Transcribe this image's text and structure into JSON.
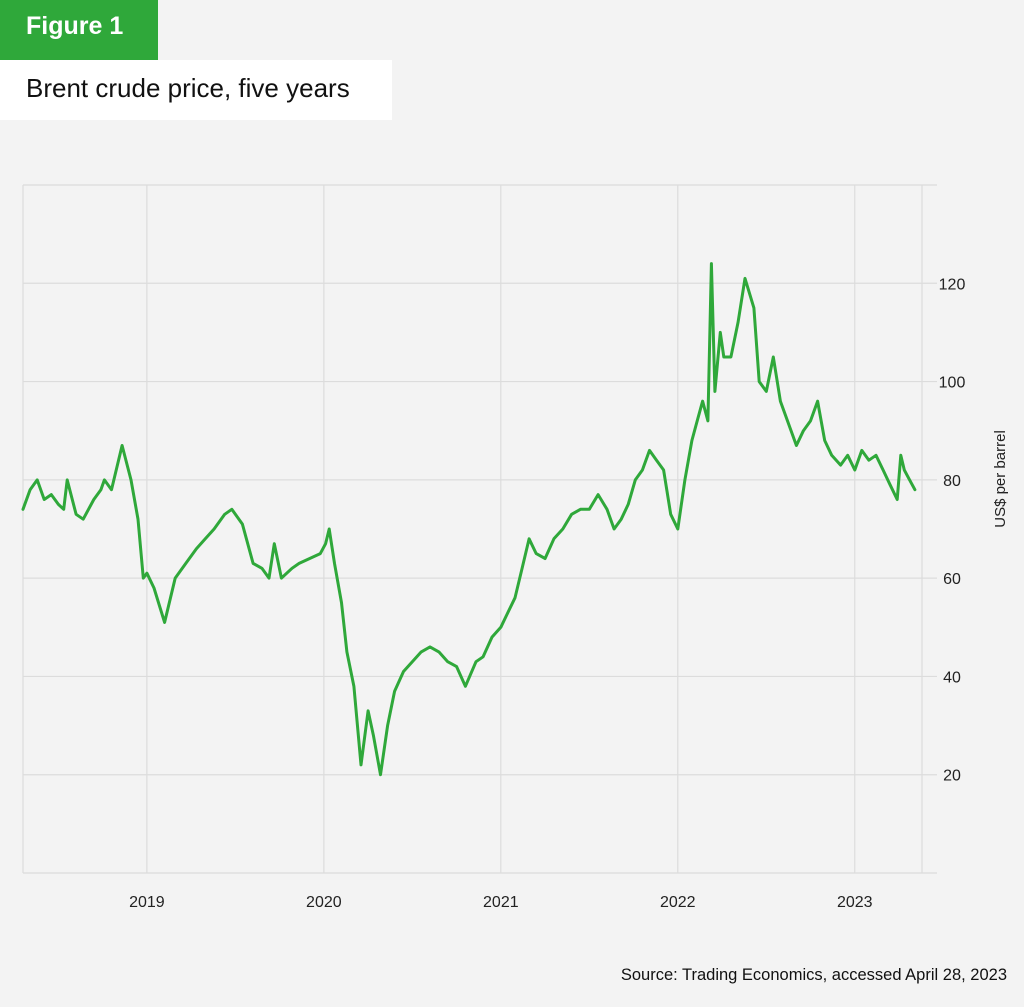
{
  "figure_label": "Figure 1",
  "title": "Brent crude price, five years",
  "source": "Source: Trading Economics, accessed April 28, 2023",
  "colors": {
    "line": "#2fa83a",
    "badge": "#2fa83a",
    "grid": "#dcdcdc"
  },
  "chart_data": {
    "type": "line",
    "title": "Brent crude price, five years",
    "xlabel": "",
    "ylabel": "US$ per barrel",
    "xlim": [
      2018.3,
      2023.38
    ],
    "ylim": [
      0,
      140
    ],
    "yticks": [
      20,
      40,
      60,
      80,
      100,
      120
    ],
    "xticks": [
      {
        "label": "2019",
        "value": 2019.0
      },
      {
        "label": "2020",
        "value": 2020.0
      },
      {
        "label": "2021",
        "value": 2021.0
      },
      {
        "label": "2022",
        "value": 2022.0
      },
      {
        "label": "2023",
        "value": 2023.0
      }
    ],
    "grid": true,
    "y_axis_side": "right",
    "series": [
      {
        "name": "",
        "x": [
          2018.3,
          2018.34,
          2018.38,
          2018.42,
          2018.46,
          2018.5,
          2018.53,
          2018.55,
          2018.6,
          2018.64,
          2018.7,
          2018.74,
          2018.76,
          2018.8,
          2018.86,
          2018.91,
          2018.95,
          2018.98,
          2019.0,
          2019.04,
          2019.1,
          2019.16,
          2019.22,
          2019.28,
          2019.33,
          2019.38,
          2019.44,
          2019.48,
          2019.54,
          2019.6,
          2019.65,
          2019.69,
          2019.72,
          2019.76,
          2019.82,
          2019.86,
          2019.92,
          2019.98,
          2020.01,
          2020.03,
          2020.06,
          2020.1,
          2020.13,
          2020.17,
          2020.21,
          2020.25,
          2020.28,
          2020.32,
          2020.36,
          2020.4,
          2020.45,
          2020.5,
          2020.55,
          2020.6,
          2020.65,
          2020.7,
          2020.75,
          2020.8,
          2020.86,
          2020.9,
          2020.95,
          2021.0,
          2021.04,
          2021.08,
          2021.12,
          2021.16,
          2021.2,
          2021.25,
          2021.3,
          2021.35,
          2021.4,
          2021.45,
          2021.5,
          2021.55,
          2021.6,
          2021.64,
          2021.68,
          2021.72,
          2021.76,
          2021.8,
          2021.84,
          2021.88,
          2021.92,
          2021.96,
          2022.0,
          2022.04,
          2022.08,
          2022.11,
          2022.14,
          2022.17,
          2022.19,
          2022.21,
          2022.24,
          2022.26,
          2022.3,
          2022.34,
          2022.38,
          2022.43,
          2022.46,
          2022.5,
          2022.54,
          2022.58,
          2022.62,
          2022.67,
          2022.71,
          2022.75,
          2022.79,
          2022.83,
          2022.87,
          2022.92,
          2022.96,
          2023.0,
          2023.04,
          2023.08,
          2023.12,
          2023.16,
          2023.2,
          2023.24,
          2023.26,
          2023.28,
          2023.31,
          2023.34
        ],
        "values": [
          74,
          78,
          80,
          76,
          77,
          75,
          74,
          80,
          73,
          72,
          76,
          78,
          80,
          78,
          87,
          80,
          72,
          60,
          61,
          58,
          51,
          60,
          63,
          66,
          68,
          70,
          73,
          74,
          71,
          63,
          62,
          60,
          67,
          60,
          62,
          63,
          64,
          65,
          67,
          70,
          63,
          55,
          45,
          38,
          22,
          33,
          28,
          20,
          30,
          37,
          41,
          43,
          45,
          46,
          45,
          43,
          42,
          38,
          43,
          44,
          48,
          50,
          53,
          56,
          62,
          68,
          65,
          64,
          68,
          70,
          73,
          74,
          74,
          77,
          74,
          70,
          72,
          75,
          80,
          82,
          86,
          84,
          82,
          73,
          70,
          80,
          88,
          92,
          96,
          92,
          124,
          98,
          110,
          105,
          105,
          112,
          121,
          115,
          100,
          98,
          105,
          96,
          92,
          87,
          90,
          92,
          96,
          88,
          85,
          83,
          85,
          82,
          86,
          84,
          85,
          82,
          79,
          76,
          85,
          82,
          80,
          78
        ]
      }
    ]
  }
}
